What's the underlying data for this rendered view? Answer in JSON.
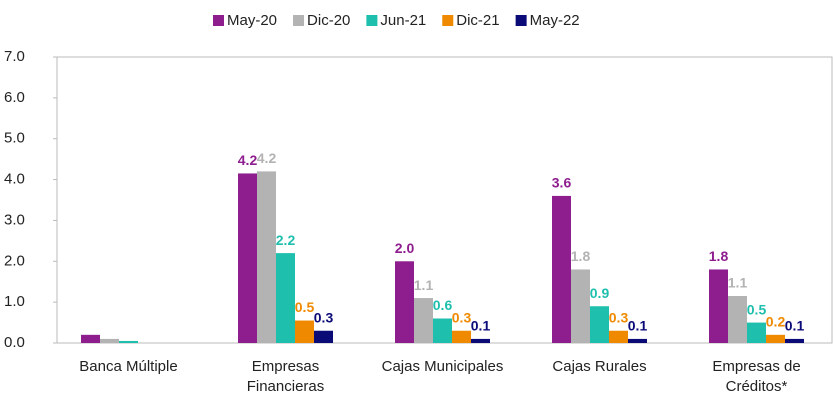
{
  "chart_data": {
    "type": "bar",
    "categories": [
      "Banca Múltiple",
      "Empresas\nFinancieras",
      "Cajas Municipales",
      "Cajas Rurales",
      "Empresas de\nCréditos*"
    ],
    "series": [
      {
        "name": "May-20",
        "color": "#8e1d8e",
        "values": [
          0.2,
          4.15,
          2.0,
          3.6,
          1.8
        ],
        "value_labels": [
          null,
          "4.2",
          "2.0",
          "3.6",
          "1.8"
        ]
      },
      {
        "name": "Dic-20",
        "color": "#b3b3b3",
        "values": [
          0.1,
          4.2,
          1.1,
          1.8,
          1.15
        ],
        "value_labels": [
          null,
          "4.2",
          "1.1",
          "1.8",
          "1.1"
        ]
      },
      {
        "name": "Jun-21",
        "color": "#1fbfae",
        "values": [
          0.05,
          2.2,
          0.6,
          0.9,
          0.5
        ],
        "value_labels": [
          null,
          "2.2",
          "0.6",
          "0.9",
          "0.5"
        ]
      },
      {
        "name": "Dic-21",
        "color": "#ef8a00",
        "values": [
          0,
          0.55,
          0.3,
          0.3,
          0.2
        ],
        "value_labels": [
          null,
          "0.5",
          "0.3",
          "0.3",
          "0.2"
        ]
      },
      {
        "name": "May-22",
        "color": "#0b0b78",
        "values": [
          0,
          0.3,
          0.1,
          0.1,
          0.1
        ],
        "value_labels": [
          null,
          "0.3",
          "0.1",
          "0.1",
          "0.1"
        ]
      }
    ],
    "ylim": [
      0,
      7
    ],
    "yticks": [
      {
        "value": 0,
        "label": "0.0"
      },
      {
        "value": 1,
        "label": "1.0"
      },
      {
        "value": 2,
        "label": "2.0"
      },
      {
        "value": 3,
        "label": "3.0"
      },
      {
        "value": 4,
        "label": "4.0"
      },
      {
        "value": 5,
        "label": "5.0"
      },
      {
        "value": 6,
        "label": "6.0"
      },
      {
        "value": 7,
        "label": "7.0"
      }
    ],
    "legend": "top"
  }
}
